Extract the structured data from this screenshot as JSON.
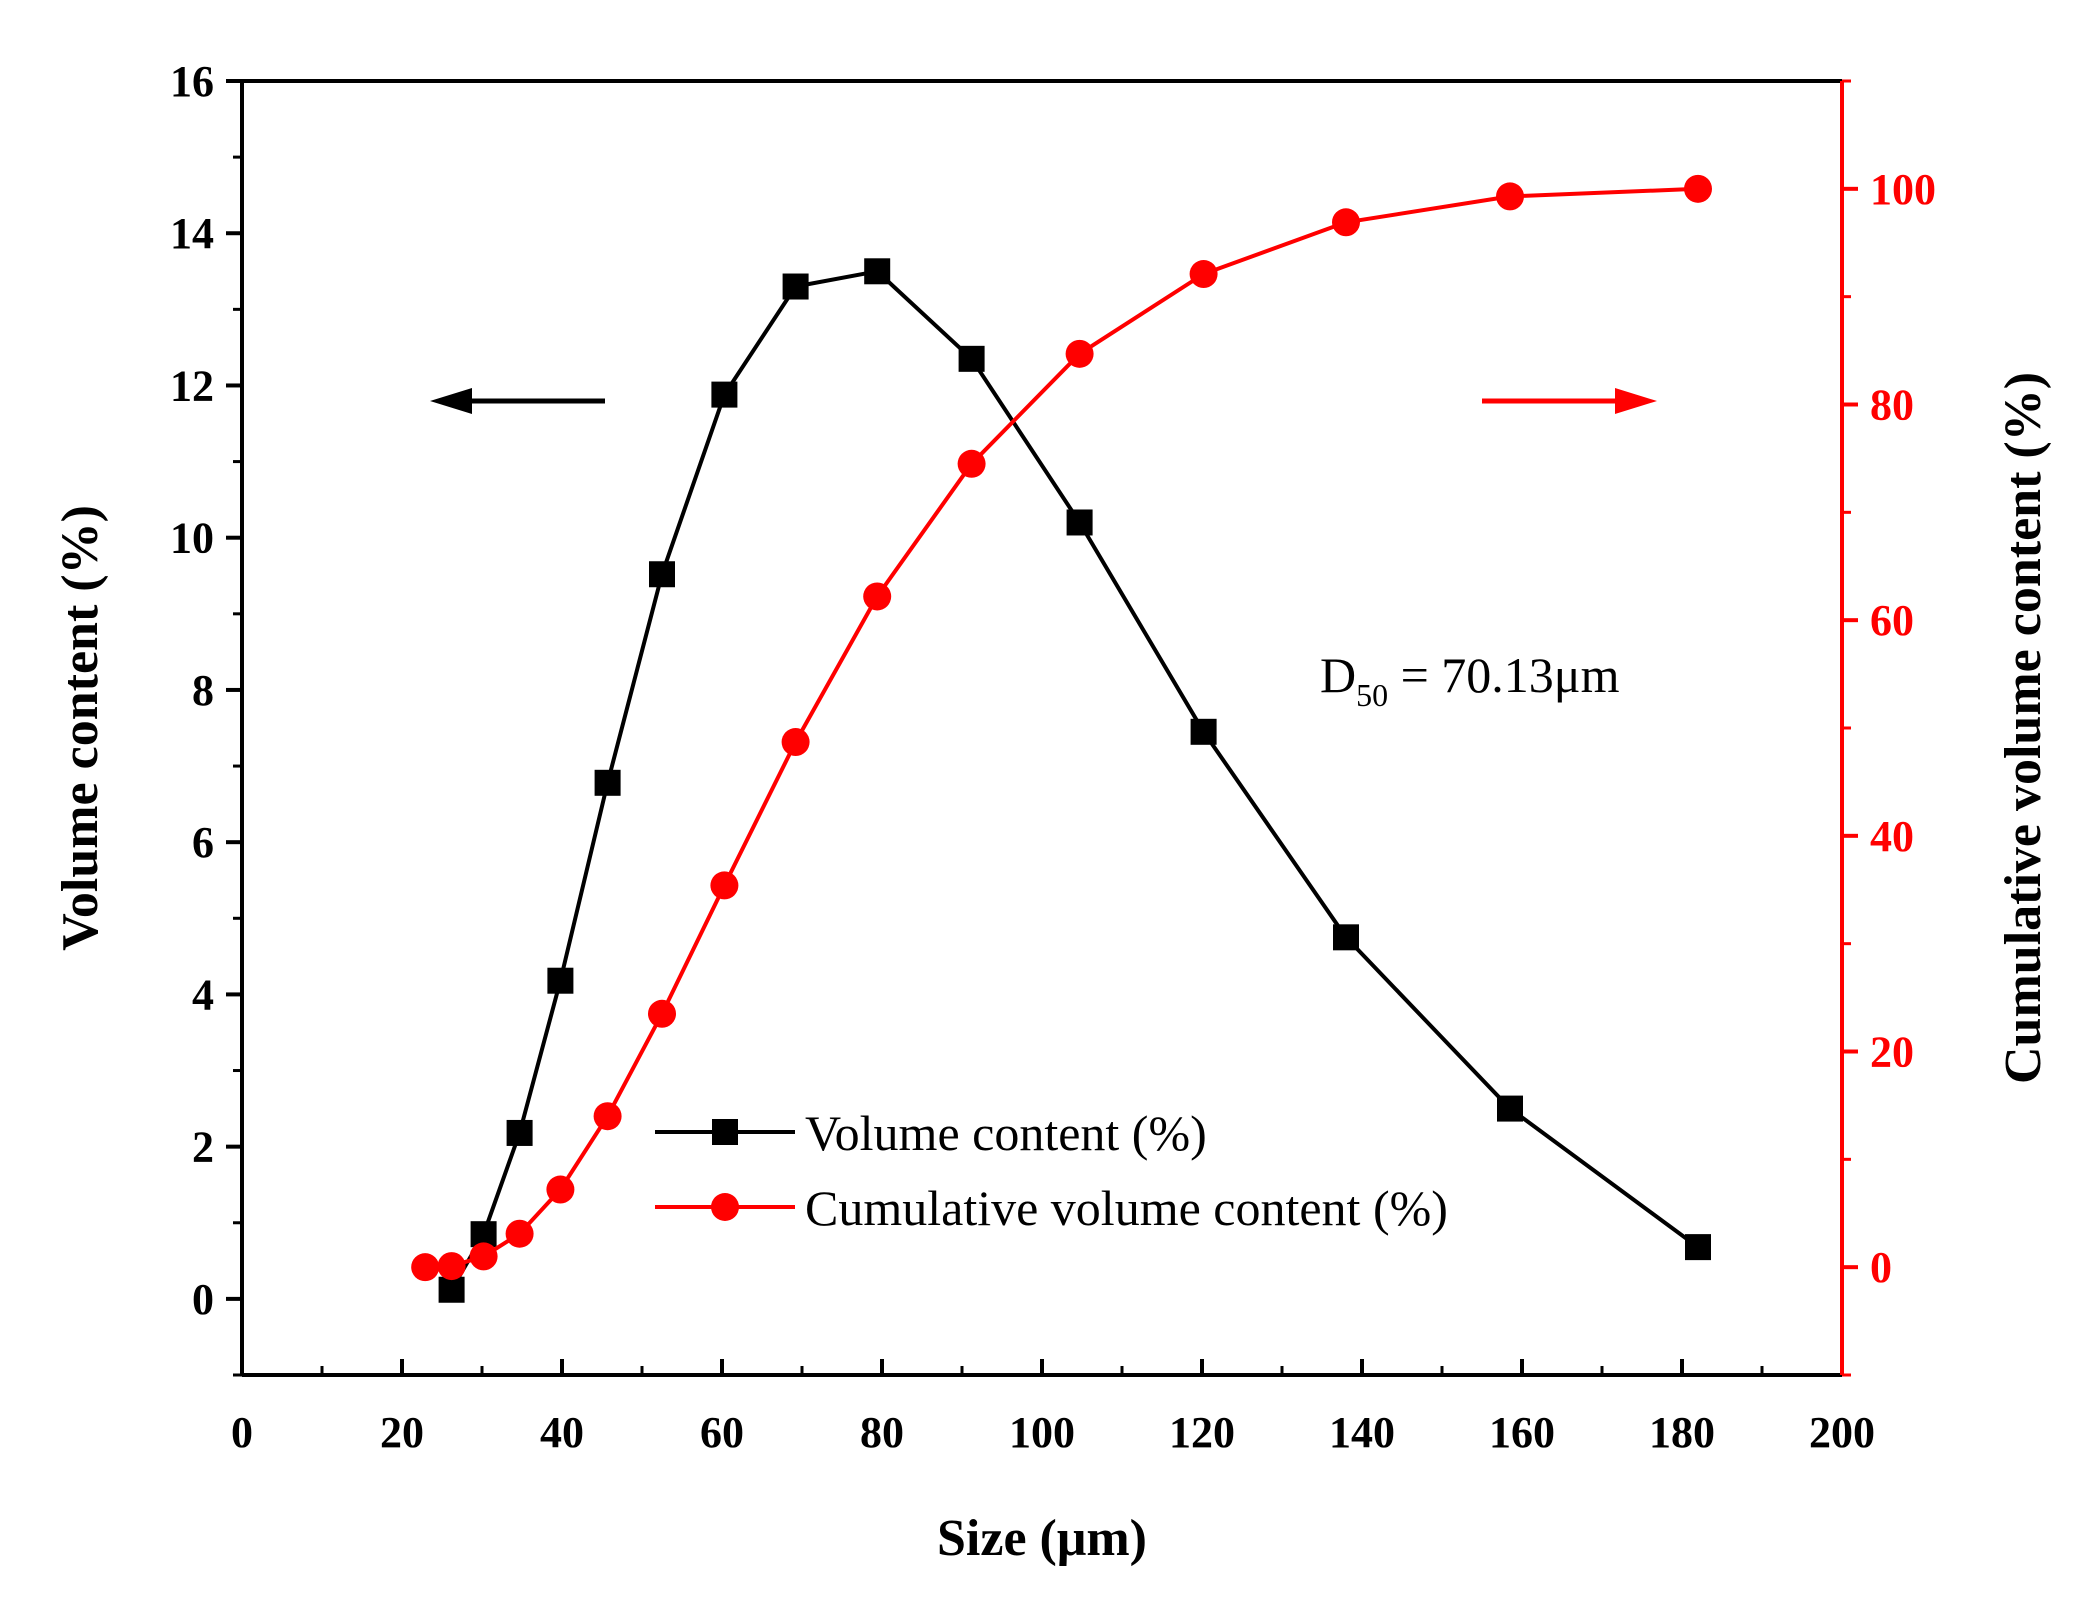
{
  "chart_data": {
    "type": "line",
    "title": "",
    "xlabel": "Size (μm)",
    "ylabel": "Volume content (%)",
    "y2label": "Cumulative volume content (%)",
    "xlim": [
      0,
      200
    ],
    "ylim": [
      -1,
      16
    ],
    "y2lim": [
      -10,
      110
    ],
    "xticks": [
      0,
      20,
      40,
      60,
      80,
      100,
      120,
      140,
      160,
      180,
      200
    ],
    "yticks": [
      0,
      2,
      4,
      6,
      8,
      10,
      12,
      14,
      16
    ],
    "y2ticks": [
      0,
      20,
      40,
      60,
      80,
      100
    ],
    "grid": false,
    "legend_position": "bottom-center",
    "colors": {
      "primary": "#000000",
      "secondary": "#ff0000"
    },
    "series": [
      {
        "name": "Volume content (%)",
        "axis": "left",
        "marker": "square",
        "color": "#000000",
        "x": [
          26.2,
          30.2,
          34.7,
          39.8,
          45.7,
          52.5,
          60.3,
          69.2,
          79.4,
          91.2,
          104.7,
          120.2,
          138.0,
          158.5,
          182.0
        ],
        "y": [
          0.12,
          0.85,
          2.18,
          4.18,
          6.78,
          9.52,
          11.88,
          13.3,
          13.5,
          12.35,
          10.2,
          7.45,
          4.75,
          2.5,
          0.68
        ]
      },
      {
        "name": "Cumulative volume content (%)",
        "axis": "right",
        "marker": "circle",
        "color": "#ff0000",
        "x": [
          22.9,
          26.2,
          30.2,
          34.7,
          39.8,
          45.7,
          52.5,
          60.3,
          69.2,
          79.4,
          91.2,
          104.7,
          120.2,
          138.0,
          158.5,
          182.0
        ],
        "y": [
          0.0,
          0.1,
          1.0,
          3.1,
          7.2,
          14.0,
          23.5,
          35.4,
          48.7,
          62.2,
          74.5,
          84.7,
          92.1,
          96.9,
          99.3,
          100.0
        ]
      }
    ],
    "annotations": {
      "d50_prefix": "D",
      "d50_subscript": "50",
      "d50_value": " = 70.13μm",
      "left_arrow": "points to left axis",
      "right_arrow": "points to right axis"
    }
  }
}
